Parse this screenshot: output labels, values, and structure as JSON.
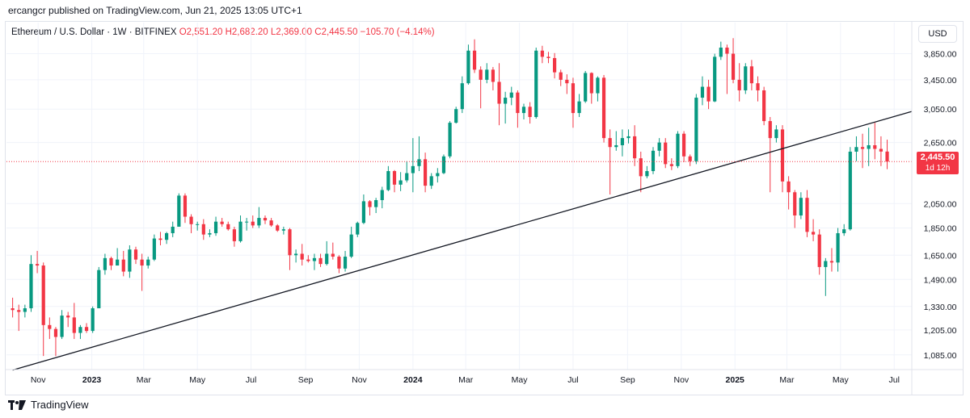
{
  "header": {
    "publisher": "ercangcr published on TradingView.com, Jun 21, 2025 13:05 UTC+1"
  },
  "symbol": {
    "name": "Ethereum / U.S. Dollar · 1W · BITFINEX",
    "open": "O2,551.20",
    "high": "H2,682.20",
    "low": "L2,369.00",
    "close": "C2,445.50",
    "change": "−105.70 (−4.14%)"
  },
  "currency_label": "USD",
  "last_price": {
    "value": "2,445.50",
    "countdown": "1d 12h"
  },
  "footer": {
    "brand": "TradingView"
  },
  "colors": {
    "up": "#089981",
    "down": "#f23645",
    "trendline": "#131722",
    "price_line": "#f23645"
  },
  "chart_data": {
    "type": "candlestick",
    "title": "Ethereum / U.S. Dollar · 1W · BITFINEX",
    "y_scale": "log",
    "ylim": [
      1020,
      4100
    ],
    "y_ticks": [
      1085,
      1205,
      1330,
      1490,
      1650,
      1850,
      2050,
      2650,
      3050,
      3450,
      3850
    ],
    "y_tick_labels": [
      "1,085.00",
      "1,205.00",
      "1,330.00",
      "1,490.00",
      "1,650.00",
      "1,850.00",
      "2,050.00",
      "2,650.00",
      "3,050.00",
      "3,450.00",
      "3,850.00"
    ],
    "x_tick_labels": [
      {
        "label": "Nov",
        "date": "2022-11-01"
      },
      {
        "label": "2023",
        "date": "2023-01-01",
        "bold": true
      },
      {
        "label": "Mar",
        "date": "2023-03-01"
      },
      {
        "label": "May",
        "date": "2023-05-01"
      },
      {
        "label": "Jul",
        "date": "2023-07-01"
      },
      {
        "label": "Sep",
        "date": "2023-09-01"
      },
      {
        "label": "Nov",
        "date": "2023-11-01"
      },
      {
        "label": "2024",
        "date": "2024-01-01",
        "bold": true
      },
      {
        "label": "Mar",
        "date": "2024-03-01"
      },
      {
        "label": "May",
        "date": "2024-05-01"
      },
      {
        "label": "Jul",
        "date": "2024-07-01"
      },
      {
        "label": "Sep",
        "date": "2024-09-01"
      },
      {
        "label": "Nov",
        "date": "2024-11-01"
      },
      {
        "label": "2025",
        "date": "2025-01-01",
        "bold": true
      },
      {
        "label": "Mar",
        "date": "2025-03-01"
      },
      {
        "label": "May",
        "date": "2025-05-01"
      },
      {
        "label": "Jul",
        "date": "2025-07-01"
      }
    ],
    "x_range": [
      "2022-09-26",
      "2025-07-21"
    ],
    "last_price": 2445.5,
    "trendline": [
      {
        "date": "2022-10-03",
        "price": 1018
      },
      {
        "date": "2025-07-21",
        "price": 3020
      }
    ],
    "candles": [
      {
        "d": "2022-10-03",
        "o": 1320,
        "h": 1380,
        "l": 1270,
        "c": 1310
      },
      {
        "d": "2022-10-10",
        "o": 1310,
        "h": 1340,
        "l": 1200,
        "c": 1300
      },
      {
        "d": "2022-10-17",
        "o": 1300,
        "h": 1340,
        "l": 1270,
        "c": 1320
      },
      {
        "d": "2022-10-24",
        "o": 1320,
        "h": 1650,
        "l": 1300,
        "c": 1590
      },
      {
        "d": "2022-10-31",
        "o": 1590,
        "h": 1680,
        "l": 1530,
        "c": 1580
      },
      {
        "d": "2022-11-07",
        "o": 1580,
        "h": 1600,
        "l": 1080,
        "c": 1230
      },
      {
        "d": "2022-11-14",
        "o": 1230,
        "h": 1270,
        "l": 1160,
        "c": 1210
      },
      {
        "d": "2022-11-21",
        "o": 1210,
        "h": 1220,
        "l": 1080,
        "c": 1170
      },
      {
        "d": "2022-11-28",
        "o": 1170,
        "h": 1310,
        "l": 1160,
        "c": 1280
      },
      {
        "d": "2022-12-05",
        "o": 1280,
        "h": 1300,
        "l": 1220,
        "c": 1270
      },
      {
        "d": "2022-12-12",
        "o": 1270,
        "h": 1350,
        "l": 1160,
        "c": 1190
      },
      {
        "d": "2022-12-19",
        "o": 1190,
        "h": 1230,
        "l": 1160,
        "c": 1220
      },
      {
        "d": "2022-12-26",
        "o": 1220,
        "h": 1240,
        "l": 1190,
        "c": 1200
      },
      {
        "d": "2023-01-02",
        "o": 1200,
        "h": 1330,
        "l": 1190,
        "c": 1320
      },
      {
        "d": "2023-01-09",
        "o": 1320,
        "h": 1570,
        "l": 1320,
        "c": 1550
      },
      {
        "d": "2023-01-16",
        "o": 1550,
        "h": 1660,
        "l": 1520,
        "c": 1630
      },
      {
        "d": "2023-01-23",
        "o": 1630,
        "h": 1640,
        "l": 1550,
        "c": 1580
      },
      {
        "d": "2023-01-30",
        "o": 1580,
        "h": 1700,
        "l": 1580,
        "c": 1620
      },
      {
        "d": "2023-02-06",
        "o": 1620,
        "h": 1680,
        "l": 1510,
        "c": 1540
      },
      {
        "d": "2023-02-13",
        "o": 1540,
        "h": 1720,
        "l": 1500,
        "c": 1690
      },
      {
        "d": "2023-02-20",
        "o": 1690,
        "h": 1710,
        "l": 1590,
        "c": 1620
      },
      {
        "d": "2023-02-27",
        "o": 1620,
        "h": 1660,
        "l": 1420,
        "c": 1580
      },
      {
        "d": "2023-03-06",
        "o": 1580,
        "h": 1640,
        "l": 1560,
        "c": 1620
      },
      {
        "d": "2023-03-13",
        "o": 1620,
        "h": 1800,
        "l": 1610,
        "c": 1770
      },
      {
        "d": "2023-03-20",
        "o": 1770,
        "h": 1820,
        "l": 1720,
        "c": 1760
      },
      {
        "d": "2023-03-27",
        "o": 1760,
        "h": 1820,
        "l": 1730,
        "c": 1810
      },
      {
        "d": "2023-04-03",
        "o": 1810,
        "h": 1900,
        "l": 1780,
        "c": 1860
      },
      {
        "d": "2023-04-10",
        "o": 1860,
        "h": 2140,
        "l": 1860,
        "c": 2120
      },
      {
        "d": "2023-04-17",
        "o": 2120,
        "h": 2140,
        "l": 1890,
        "c": 1940
      },
      {
        "d": "2023-04-24",
        "o": 1940,
        "h": 1960,
        "l": 1810,
        "c": 1880
      },
      {
        "d": "2023-05-01",
        "o": 1880,
        "h": 1900,
        "l": 1830,
        "c": 1880
      },
      {
        "d": "2023-05-08",
        "o": 1880,
        "h": 1920,
        "l": 1760,
        "c": 1800
      },
      {
        "d": "2023-05-15",
        "o": 1800,
        "h": 1840,
        "l": 1780,
        "c": 1810
      },
      {
        "d": "2023-05-22",
        "o": 1810,
        "h": 1940,
        "l": 1790,
        "c": 1900
      },
      {
        "d": "2023-05-29",
        "o": 1900,
        "h": 1930,
        "l": 1860,
        "c": 1880
      },
      {
        "d": "2023-06-05",
        "o": 1880,
        "h": 1900,
        "l": 1830,
        "c": 1840
      },
      {
        "d": "2023-06-12",
        "o": 1840,
        "h": 1860,
        "l": 1710,
        "c": 1750
      },
      {
        "d": "2023-06-19",
        "o": 1750,
        "h": 1950,
        "l": 1740,
        "c": 1900
      },
      {
        "d": "2023-06-26",
        "o": 1900,
        "h": 1930,
        "l": 1830,
        "c": 1900
      },
      {
        "d": "2023-07-03",
        "o": 1900,
        "h": 1950,
        "l": 1850,
        "c": 1870
      },
      {
        "d": "2023-07-10",
        "o": 1870,
        "h": 2020,
        "l": 1850,
        "c": 1930
      },
      {
        "d": "2023-07-17",
        "o": 1930,
        "h": 1950,
        "l": 1880,
        "c": 1910
      },
      {
        "d": "2023-07-24",
        "o": 1910,
        "h": 1930,
        "l": 1860,
        "c": 1870
      },
      {
        "d": "2023-07-31",
        "o": 1870,
        "h": 1880,
        "l": 1820,
        "c": 1830
      },
      {
        "d": "2023-08-07",
        "o": 1830,
        "h": 1860,
        "l": 1800,
        "c": 1840
      },
      {
        "d": "2023-08-14",
        "o": 1840,
        "h": 1850,
        "l": 1550,
        "c": 1650
      },
      {
        "d": "2023-08-21",
        "o": 1650,
        "h": 1690,
        "l": 1600,
        "c": 1660
      },
      {
        "d": "2023-08-28",
        "o": 1660,
        "h": 1730,
        "l": 1580,
        "c": 1620
      },
      {
        "d": "2023-09-04",
        "o": 1620,
        "h": 1650,
        "l": 1600,
        "c": 1610
      },
      {
        "d": "2023-09-11",
        "o": 1610,
        "h": 1660,
        "l": 1550,
        "c": 1630
      },
      {
        "d": "2023-09-18",
        "o": 1630,
        "h": 1660,
        "l": 1570,
        "c": 1590
      },
      {
        "d": "2023-09-25",
        "o": 1590,
        "h": 1750,
        "l": 1580,
        "c": 1660
      },
      {
        "d": "2023-10-02",
        "o": 1660,
        "h": 1740,
        "l": 1620,
        "c": 1640
      },
      {
        "d": "2023-10-09",
        "o": 1640,
        "h": 1650,
        "l": 1530,
        "c": 1560
      },
      {
        "d": "2023-10-16",
        "o": 1560,
        "h": 1680,
        "l": 1540,
        "c": 1640
      },
      {
        "d": "2023-10-23",
        "o": 1640,
        "h": 1860,
        "l": 1630,
        "c": 1800
      },
      {
        "d": "2023-10-30",
        "o": 1800,
        "h": 1900,
        "l": 1780,
        "c": 1890
      },
      {
        "d": "2023-11-06",
        "o": 1890,
        "h": 2130,
        "l": 1880,
        "c": 2070
      },
      {
        "d": "2023-11-13",
        "o": 2070,
        "h": 2080,
        "l": 1950,
        "c": 2020
      },
      {
        "d": "2023-11-20",
        "o": 2020,
        "h": 2100,
        "l": 1970,
        "c": 2080
      },
      {
        "d": "2023-11-27",
        "o": 2080,
        "h": 2200,
        "l": 2010,
        "c": 2170
      },
      {
        "d": "2023-12-04",
        "o": 2170,
        "h": 2400,
        "l": 2160,
        "c": 2350
      },
      {
        "d": "2023-12-11",
        "o": 2350,
        "h": 2360,
        "l": 2150,
        "c": 2220
      },
      {
        "d": "2023-12-18",
        "o": 2220,
        "h": 2340,
        "l": 2160,
        "c": 2260
      },
      {
        "d": "2023-12-25",
        "o": 2260,
        "h": 2450,
        "l": 2240,
        "c": 2330
      },
      {
        "d": "2024-01-01",
        "o": 2330,
        "h": 2700,
        "l": 2150,
        "c": 2400
      },
      {
        "d": "2024-01-08",
        "o": 2400,
        "h": 2720,
        "l": 2350,
        "c": 2470
      },
      {
        "d": "2024-01-15",
        "o": 2470,
        "h": 2540,
        "l": 2150,
        "c": 2210
      },
      {
        "d": "2024-01-22",
        "o": 2210,
        "h": 2330,
        "l": 2180,
        "c": 2300
      },
      {
        "d": "2024-01-29",
        "o": 2300,
        "h": 2380,
        "l": 2240,
        "c": 2330
      },
      {
        "d": "2024-02-05",
        "o": 2330,
        "h": 2520,
        "l": 2320,
        "c": 2500
      },
      {
        "d": "2024-02-12",
        "o": 2500,
        "h": 2900,
        "l": 2480,
        "c": 2880
      },
      {
        "d": "2024-02-19",
        "o": 2880,
        "h": 3080,
        "l": 2870,
        "c": 3050
      },
      {
        "d": "2024-02-26",
        "o": 3050,
        "h": 3500,
        "l": 3000,
        "c": 3400
      },
      {
        "d": "2024-03-04",
        "o": 3400,
        "h": 4000,
        "l": 3380,
        "c": 3900
      },
      {
        "d": "2024-03-11",
        "o": 3900,
        "h": 4090,
        "l": 3550,
        "c": 3600
      },
      {
        "d": "2024-03-18",
        "o": 3600,
        "h": 3650,
        "l": 3060,
        "c": 3450
      },
      {
        "d": "2024-03-25",
        "o": 3450,
        "h": 3700,
        "l": 3400,
        "c": 3600
      },
      {
        "d": "2024-04-01",
        "o": 3600,
        "h": 3640,
        "l": 3300,
        "c": 3420
      },
      {
        "d": "2024-04-08",
        "o": 3420,
        "h": 3700,
        "l": 2850,
        "c": 3120
      },
      {
        "d": "2024-04-15",
        "o": 3120,
        "h": 3280,
        "l": 2870,
        "c": 3200
      },
      {
        "d": "2024-04-22",
        "o": 3200,
        "h": 3350,
        "l": 3100,
        "c": 3270
      },
      {
        "d": "2024-04-29",
        "o": 3270,
        "h": 3300,
        "l": 2820,
        "c": 3000
      },
      {
        "d": "2024-05-06",
        "o": 3000,
        "h": 3120,
        "l": 2920,
        "c": 3080
      },
      {
        "d": "2024-05-13",
        "o": 3080,
        "h": 3140,
        "l": 2870,
        "c": 2950
      },
      {
        "d": "2024-05-20",
        "o": 2950,
        "h": 3950,
        "l": 2930,
        "c": 3900
      },
      {
        "d": "2024-05-27",
        "o": 3900,
        "h": 3980,
        "l": 3700,
        "c": 3800
      },
      {
        "d": "2024-06-03",
        "o": 3800,
        "h": 3880,
        "l": 3700,
        "c": 3780
      },
      {
        "d": "2024-06-10",
        "o": 3780,
        "h": 3860,
        "l": 3470,
        "c": 3560
      },
      {
        "d": "2024-06-17",
        "o": 3560,
        "h": 3600,
        "l": 3360,
        "c": 3450
      },
      {
        "d": "2024-06-24",
        "o": 3450,
        "h": 3530,
        "l": 3250,
        "c": 3400
      },
      {
        "d": "2024-07-01",
        "o": 3400,
        "h": 3480,
        "l": 2820,
        "c": 3000
      },
      {
        "d": "2024-07-08",
        "o": 3000,
        "h": 3250,
        "l": 2950,
        "c": 3150
      },
      {
        "d": "2024-07-15",
        "o": 3150,
        "h": 3580,
        "l": 3130,
        "c": 3550
      },
      {
        "d": "2024-07-22",
        "o": 3550,
        "h": 3560,
        "l": 3120,
        "c": 3260
      },
      {
        "d": "2024-07-29",
        "o": 3260,
        "h": 3500,
        "l": 3150,
        "c": 3480
      },
      {
        "d": "2024-08-05",
        "o": 3480,
        "h": 3520,
        "l": 2650,
        "c": 2700
      },
      {
        "d": "2024-08-12",
        "o": 2700,
        "h": 2800,
        "l": 2130,
        "c": 2600
      },
      {
        "d": "2024-08-19",
        "o": 2600,
        "h": 2780,
        "l": 2560,
        "c": 2620
      },
      {
        "d": "2024-08-26",
        "o": 2620,
        "h": 2800,
        "l": 2500,
        "c": 2700
      },
      {
        "d": "2024-09-02",
        "o": 2700,
        "h": 2800,
        "l": 2640,
        "c": 2720
      },
      {
        "d": "2024-09-09",
        "o": 2720,
        "h": 2850,
        "l": 2400,
        "c": 2480
      },
      {
        "d": "2024-09-16",
        "o": 2480,
        "h": 2550,
        "l": 2150,
        "c": 2300
      },
      {
        "d": "2024-09-23",
        "o": 2300,
        "h": 2400,
        "l": 2280,
        "c": 2350
      },
      {
        "d": "2024-09-30",
        "o": 2350,
        "h": 2600,
        "l": 2320,
        "c": 2560
      },
      {
        "d": "2024-10-07",
        "o": 2560,
        "h": 2700,
        "l": 2500,
        "c": 2650
      },
      {
        "d": "2024-10-14",
        "o": 2650,
        "h": 2700,
        "l": 2380,
        "c": 2420
      },
      {
        "d": "2024-10-21",
        "o": 2420,
        "h": 2480,
        "l": 2360,
        "c": 2400
      },
      {
        "d": "2024-10-28",
        "o": 2400,
        "h": 2780,
        "l": 2380,
        "c": 2750
      },
      {
        "d": "2024-11-04",
        "o": 2750,
        "h": 2780,
        "l": 2440,
        "c": 2500
      },
      {
        "d": "2024-11-11",
        "o": 2500,
        "h": 2520,
        "l": 2400,
        "c": 2450
      },
      {
        "d": "2024-11-18",
        "o": 2450,
        "h": 3250,
        "l": 2420,
        "c": 3200
      },
      {
        "d": "2024-11-25",
        "o": 3200,
        "h": 3500,
        "l": 3100,
        "c": 3350
      },
      {
        "d": "2024-12-02",
        "o": 3350,
        "h": 3450,
        "l": 3050,
        "c": 3150
      },
      {
        "d": "2024-12-09",
        "o": 3150,
        "h": 3850,
        "l": 3140,
        "c": 3800
      },
      {
        "d": "2024-12-16",
        "o": 3800,
        "h": 4050,
        "l": 3750,
        "c": 3950
      },
      {
        "d": "2024-12-23",
        "o": 3950,
        "h": 4000,
        "l": 3250,
        "c": 3850
      },
      {
        "d": "2024-12-30",
        "o": 3850,
        "h": 4110,
        "l": 3400,
        "c": 3450
      },
      {
        "d": "2025-01-06",
        "o": 3450,
        "h": 3700,
        "l": 3150,
        "c": 3300
      },
      {
        "d": "2025-01-13",
        "o": 3300,
        "h": 3700,
        "l": 3250,
        "c": 3650
      },
      {
        "d": "2025-01-20",
        "o": 3650,
        "h": 3750,
        "l": 3300,
        "c": 3400
      },
      {
        "d": "2025-01-27",
        "o": 3400,
        "h": 3500,
        "l": 3150,
        "c": 3300
      },
      {
        "d": "2025-02-03",
        "o": 3300,
        "h": 3350,
        "l": 2850,
        "c": 2900
      },
      {
        "d": "2025-02-10",
        "o": 2900,
        "h": 2950,
        "l": 2150,
        "c": 2700
      },
      {
        "d": "2025-02-17",
        "o": 2700,
        "h": 2850,
        "l": 2650,
        "c": 2800
      },
      {
        "d": "2025-02-24",
        "o": 2800,
        "h": 2850,
        "l": 2150,
        "c": 2250
      },
      {
        "d": "2025-03-03",
        "o": 2250,
        "h": 2300,
        "l": 2000,
        "c": 2150
      },
      {
        "d": "2025-03-10",
        "o": 2150,
        "h": 2170,
        "l": 1850,
        "c": 1950
      },
      {
        "d": "2025-03-17",
        "o": 1950,
        "h": 2150,
        "l": 1920,
        "c": 2100
      },
      {
        "d": "2025-03-24",
        "o": 2100,
        "h": 2170,
        "l": 1780,
        "c": 1820
      },
      {
        "d": "2025-03-31",
        "o": 1820,
        "h": 1920,
        "l": 1750,
        "c": 1800
      },
      {
        "d": "2025-04-07",
        "o": 1800,
        "h": 1840,
        "l": 1520,
        "c": 1570
      },
      {
        "d": "2025-04-14",
        "o": 1570,
        "h": 1630,
        "l": 1390,
        "c": 1610
      },
      {
        "d": "2025-04-21",
        "o": 1610,
        "h": 1700,
        "l": 1540,
        "c": 1600
      },
      {
        "d": "2025-04-28",
        "o": 1600,
        "h": 1850,
        "l": 1540,
        "c": 1810
      },
      {
        "d": "2025-05-05",
        "o": 1810,
        "h": 1880,
        "l": 1790,
        "c": 1840
      },
      {
        "d": "2025-05-12",
        "o": 1840,
        "h": 2600,
        "l": 1830,
        "c": 2550
      },
      {
        "d": "2025-05-19",
        "o": 2550,
        "h": 2720,
        "l": 2450,
        "c": 2600
      },
      {
        "d": "2025-05-26",
        "o": 2600,
        "h": 2750,
        "l": 2380,
        "c": 2580
      },
      {
        "d": "2025-06-02",
        "o": 2580,
        "h": 2820,
        "l": 2400,
        "c": 2620
      },
      {
        "d": "2025-06-09",
        "o": 2620,
        "h": 2880,
        "l": 2470,
        "c": 2580
      },
      {
        "d": "2025-06-16",
        "o": 2580,
        "h": 2720,
        "l": 2400,
        "c": 2551.2
      },
      {
        "d": "2025-06-23",
        "o": 2551.2,
        "h": 2682.2,
        "l": 2369,
        "c": 2445.5
      }
    ]
  }
}
